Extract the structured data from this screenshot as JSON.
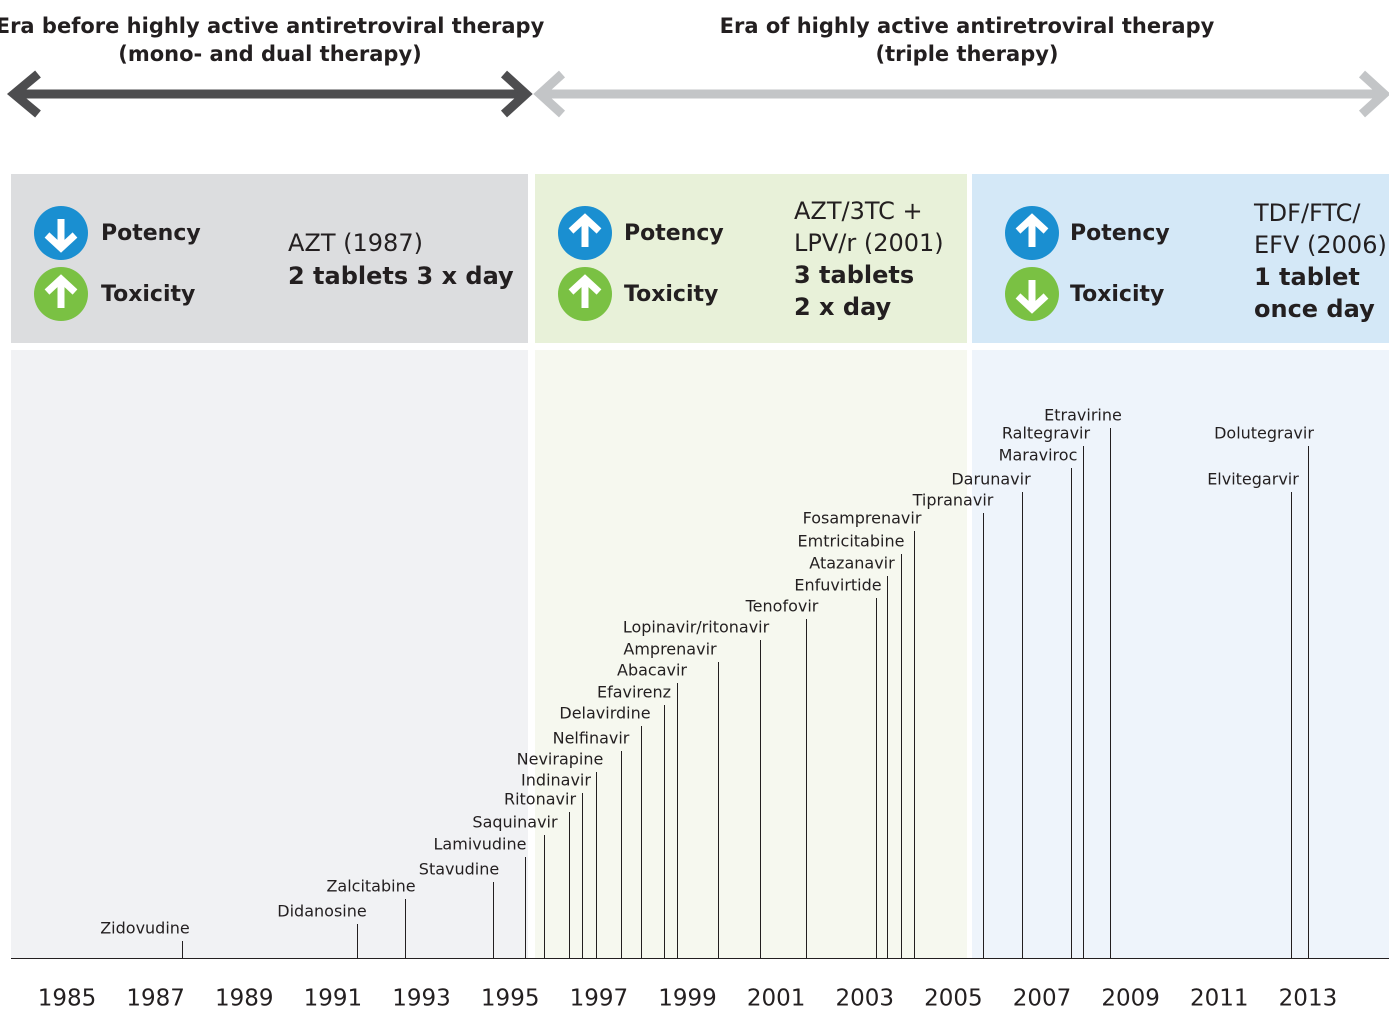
{
  "eras": [
    {
      "title": "Era before highly active antiretroviral therapy",
      "subtitle": "(mono- and dual therapy)"
    },
    {
      "title": "Era of highly active antiretroviral  therapy",
      "subtitle": "(triple therapy)"
    }
  ],
  "panels": [
    {
      "potency": "Potency",
      "toxicity": "Toxicity",
      "potency_arrow": "down",
      "toxicity_arrow": "up",
      "regimen": [
        "AZT (1987)"
      ],
      "dosing": [
        "2 tablets 3 x day"
      ]
    },
    {
      "potency": "Potency",
      "toxicity": "Toxicity",
      "potency_arrow": "up",
      "toxicity_arrow": "up",
      "regimen": [
        "AZT/3TC +",
        "LPV/r (2001)"
      ],
      "dosing": [
        "3 tablets",
        "2 x day"
      ]
    },
    {
      "potency": "Potency",
      "toxicity": "Toxicity",
      "potency_arrow": "up",
      "toxicity_arrow": "down",
      "regimen": [
        "TDF/FTC/",
        "EFV (2006)"
      ],
      "dosing": [
        "1 tablet",
        "once day"
      ]
    }
  ],
  "drugs": [
    "Zidovudine",
    "Didanosine",
    "Zalcitabine",
    "Stavudine",
    "Lamivudine",
    "Saquinavir",
    "Ritonavir",
    "Indinavir",
    "Nevirapine",
    "Nelfinavir",
    "Delavirdine",
    "Efavirenz",
    "Abacavir",
    "Amprenavir",
    "Lopinavir/ritonavir",
    "Tenofovir",
    "Enfuvirtide",
    "Atazanavir",
    "Emtricitabine",
    "Fosamprenavir",
    "Tipranavir",
    "Darunavir",
    "Maraviroc",
    "Raltegravir",
    "Etravirine",
    "Dolutegravir",
    "Elvitegarvir"
  ],
  "years": [
    "1985",
    "1987",
    "1989",
    "1991",
    "1993",
    "1995",
    "1997",
    "1999",
    "2001",
    "2003",
    "2005",
    "2007",
    "2009",
    "2011",
    "2013"
  ]
}
